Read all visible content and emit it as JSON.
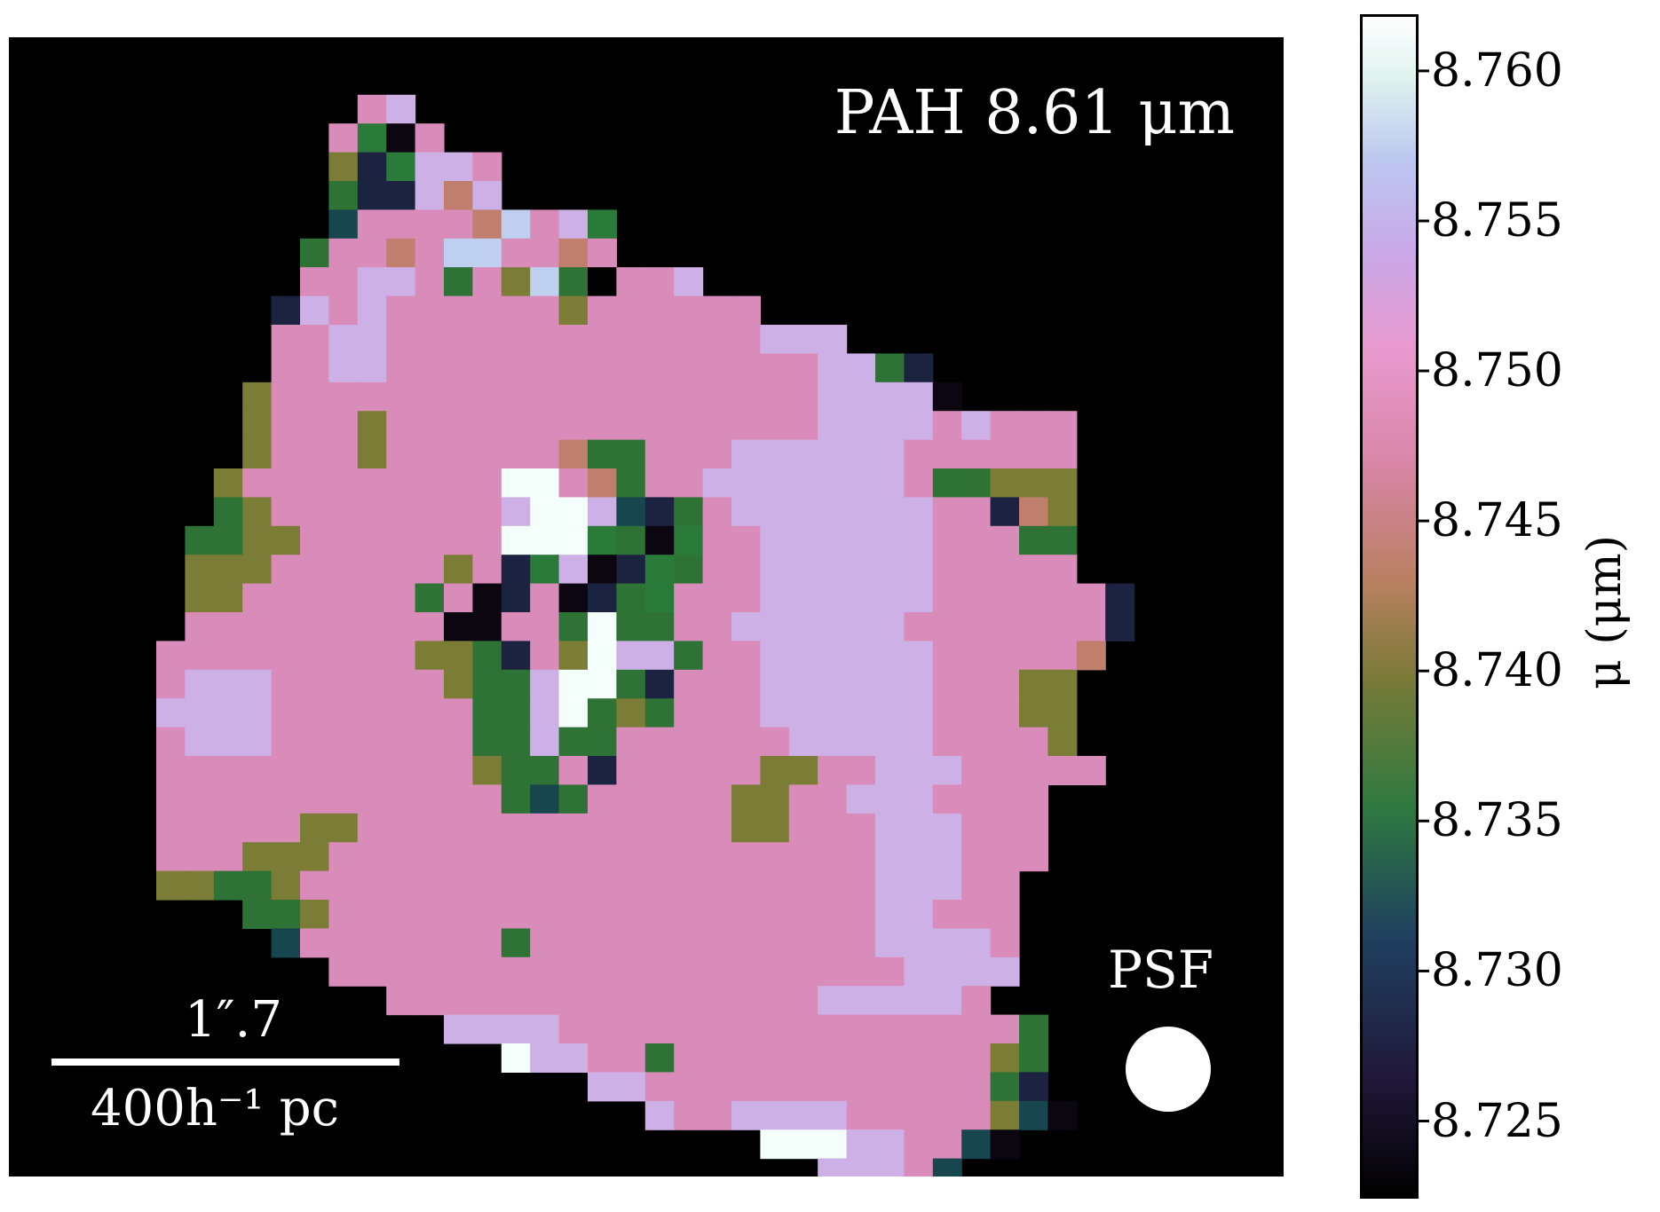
{
  "chart_data": {
    "type": "heatmap",
    "title": "PAH 8.61 μm",
    "colorbar": {
      "label": "μ (μm)",
      "range": [
        8.7225,
        8.7618
      ],
      "ticks": [
        "8.760",
        "8.755",
        "8.750",
        "8.745",
        "8.740",
        "8.735",
        "8.730",
        "8.725"
      ],
      "tick_values": [
        8.76,
        8.755,
        8.75,
        8.745,
        8.74,
        8.735,
        8.73,
        8.725
      ],
      "colormap": "cubehelix-like (black → dark blue → green → olive → brown → pink → lavender → white)"
    },
    "map_background": "#000000",
    "psf_label": "PSF",
    "scalebar": {
      "top_label": "1″.7",
      "bottom_label": "400h⁻¹ pc"
    },
    "grid": {
      "rows": 44,
      "cols": 43
    },
    "rows": [
      "...........................................",
      "...........................................",
      "............PL.............................",
      "...........PKXP............................",
      "...........MDKLLP..........................",
      "...........GDDLRL..........................",
      "...........TPPPPRSPLK......................",
      "..........GPPRPSSPPRP......................",
      "..........PPLLPGPMSGNPPL...................",
      ".........DLPLPPPPPPMPPPPPP.................",
      ".........PPLLPPPPPPPPPPPPPLLL..............",
      ".........PPLLPPPPPPPPPPPPPPPLLGD...........",
      "........MPPPPPPPPPPPPPPPPPPPLLLLX..........",
      "........MPPPMPPPPPPPPPPPPPPPLLLLPLPPP......",
      "........MPPPMPPPPPPRGGPPPLLLLLLPPPPPP......",
      ".......MPPPPPPPPPWWPRGPPLLLLLLLPGGMMM......",
      ".......GMPPPPPPPPLWWLTDGPLLLLLLLPPDRM......",
      "......GGMMPPPPPPPWWWKGXKPPLLLLLLPPPGG......",
      "......MMMPPPPPPMPDKLXDKGPPLLLLLLPPPPP......",
      "......MMPPPPPPGPXDPXDGKPPPLLLLLLPPPPPPD....",
      "......PPPPPPPPPXXPPGWGGPPLLLLLLPPPPPPPD....",
      ".....PPPPPPPPPMMGDPMWLLGPPLLLLLLPPPPPR.....",
      ".....PLLLPPPPPPMGGLWWGDPPPLLLLLLPPPMM......",
      ".....LLLLPPPPPPPGGLWGMGPPPLLLLLLPPPMM......",
      ".....PLLLPPPPPPPGGLGGPPPPPPLLLLLPPPPM......",
      ".....PPPPPPPPPPPMGGPDPPPPPMMPPLLLPPPPP.....",
      ".....PPPPPPPPPPPPGTGPPPPPMMPPLLLPPPP.......",
      ".....PPPPPMMPPPPPPPPPPPPPMMPPPLLLPPP.......",
      ".....PPPMMMPPPPPPPPPPPPPPPPPPPLLLPPP.......",
      ".....MMGGMPPPPPPPPPPPPPPPPPPPPLLLPP........",
      "........GGMPPPPPPPPPPPPPPPPPPPLLPPP........",
      ".........TPPPPPPPGPPPPPPPPPPPPLLLLP........",
      "...........PPPPPPPPPPPPPPPPPPPPLLLL........",
      ".............PPPPPPPPPPPPPPPLLLLLP.........",
      "...............LLLLPPPPPPPPPPPPPPPPG.......",
      ".................WLLPPGPPPPPPPPPPPMG.......",
      "....................LLPPPPPPPPPPPPGD.......",
      "......................LPPLLLLPPPPPMTX......",
      "..........................WWWLLPPTX........",
      "............................LLLPT..........",
      "..............................LLWWX........",
      "...........................................",
      "...........................................",
      "..........................................."
    ],
    "legend_codes": {
      "X": "8.723",
      "D": "8.728",
      "T": "8.732",
      "G": "8.735",
      "K": "8.737",
      "M": "8.740",
      "R": "8.744",
      "P": "8.748",
      "L": "8.753",
      "S": "8.756",
      "W": "8.761"
    },
    "colors": {
      "X": "#0b0610",
      "D": "#1c2340",
      "T": "#17464f",
      "G": "#2f7236",
      "K": "#2a7a3a",
      "M": "#7b7d36",
      "R": "#c07e6c",
      "P": "#d98cba",
      "L": "#cdb0e6",
      "S": "#bfcff0",
      "W": "#f4fffb"
    }
  }
}
